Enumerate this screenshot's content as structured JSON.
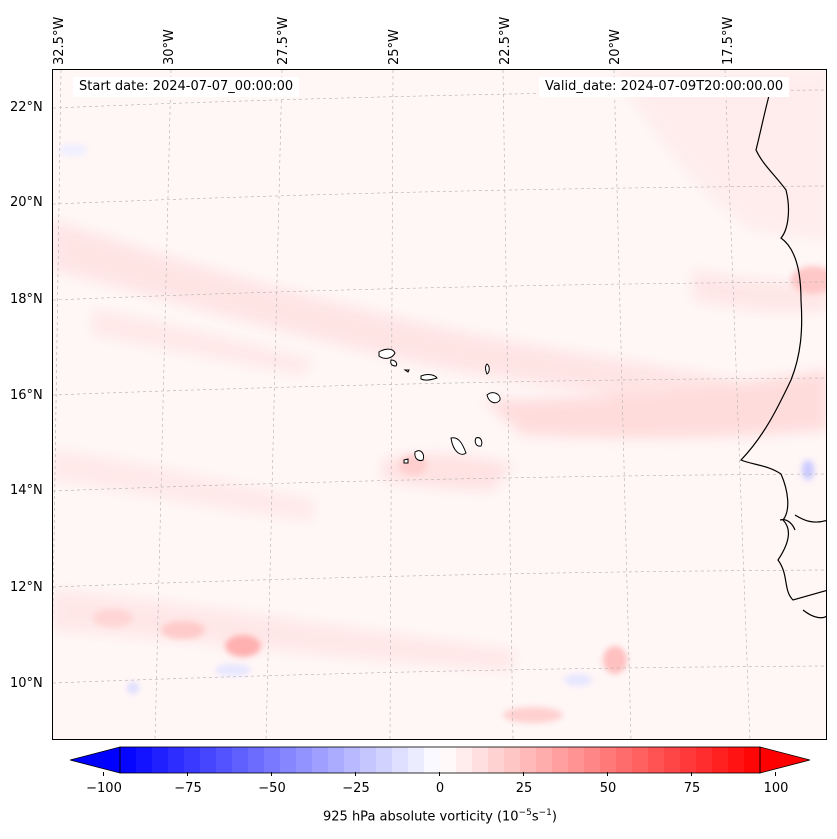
{
  "header": {
    "start_date": "Start date: 2024-07-07_00:00:00",
    "valid_date": "Valid_date: 2024-07-09T20:00:00.00"
  },
  "axes": {
    "lon_labels": [
      "32.5°W",
      "30°W",
      "27.5°W",
      "25°W",
      "22.5°W",
      "20°W",
      "17.5°W"
    ],
    "lat_labels": [
      "22°N",
      "20°N",
      "18°N",
      "16°N",
      "14°N",
      "12°N",
      "10°N"
    ]
  },
  "colorbar": {
    "label_text": "925 hPa absolute vorticity (10",
    "label_exp1": "−5",
    "label_mid": "s",
    "label_exp2": "−1",
    "label_end": ")",
    "ticks": [
      "−100",
      "−75",
      "−50",
      "−25",
      "0",
      "25",
      "50",
      "75",
      "100"
    ],
    "range": [
      -100,
      100
    ],
    "min_color": "#0000ff",
    "mid_color": "#ffffff",
    "max_color": "#ff0000"
  },
  "map": {
    "ocean_base_color": "#fff7f7",
    "coastline_color": "#000000",
    "gridline_color": "#b0b0b0",
    "features": [
      "Cape Verde islands",
      "West African coastline"
    ]
  }
}
